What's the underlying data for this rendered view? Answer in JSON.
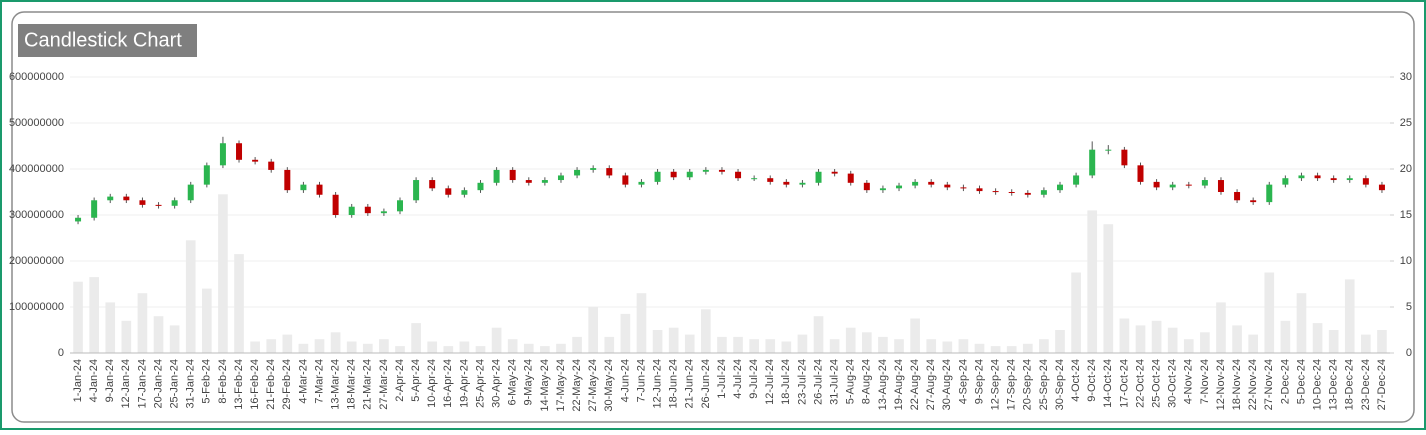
{
  "chart_data": {
    "type": "candlestick",
    "title": "Candlestick Chart",
    "categories": [
      "1-Jan-24",
      "4-Jan-24",
      "9-Jan-24",
      "12-Jan-24",
      "17-Jan-24",
      "20-Jan-24",
      "25-Jan-24",
      "31-Jan-24",
      "5-Feb-24",
      "8-Feb-24",
      "13-Feb-24",
      "16-Feb-24",
      "21-Feb-24",
      "29-Feb-24",
      "4-Mar-24",
      "7-Mar-24",
      "13-Mar-24",
      "18-Mar-24",
      "21-Mar-24",
      "27-Mar-24",
      "2-Apr-24",
      "5-Apr-24",
      "10-Apr-24",
      "16-Apr-24",
      "19-Apr-24",
      "25-Apr-24",
      "30-Apr-24",
      "6-May-24",
      "9-May-24",
      "14-May-24",
      "17-May-24",
      "22-May-24",
      "27-May-24",
      "30-May-24",
      "4-Jun-24",
      "7-Jun-24",
      "12-Jun-24",
      "18-Jun-24",
      "21-Jun-24",
      "26-Jun-24",
      "1-Jul-24",
      "4-Jul-24",
      "9-Jul-24",
      "12-Jul-24",
      "18-Jul-24",
      "23-Jul-24",
      "26-Jul-24",
      "31-Jul-24",
      "5-Aug-24",
      "8-Aug-24",
      "13-Aug-24",
      "19-Aug-24",
      "22-Aug-24",
      "27-Aug-24",
      "30-Aug-24",
      "4-Sep-24",
      "9-Sep-24",
      "12-Sep-24",
      "17-Sep-24",
      "20-Sep-24",
      "25-Sep-24",
      "30-Sep-24",
      "4-Oct-24",
      "9-Oct-24",
      "14-Oct-24",
      "17-Oct-24",
      "22-Oct-24",
      "25-Oct-24",
      "30-Oct-24",
      "4-Nov-24",
      "7-Nov-24",
      "12-Nov-24",
      "18-Nov-24",
      "22-Nov-24",
      "27-Nov-24",
      "2-Dec-24",
      "5-Dec-24",
      "10-Dec-24",
      "13-Dec-24",
      "18-Dec-24",
      "23-Dec-24",
      "27-Dec-24"
    ],
    "open": [
      14.3,
      14.7,
      16.6,
      17.0,
      16.6,
      16.1,
      16.0,
      16.6,
      18.3,
      20.4,
      22.8,
      21.0,
      20.8,
      19.9,
      17.7,
      18.3,
      17.2,
      15.0,
      15.9,
      15.2,
      15.4,
      16.6,
      18.8,
      17.9,
      17.2,
      17.7,
      18.5,
      19.9,
      18.8,
      18.5,
      18.8,
      19.3,
      19.9,
      20.1,
      19.3,
      18.3,
      18.6,
      19.7,
      19.1,
      19.7,
      19.9,
      19.7,
      19.0,
      19.0,
      18.6,
      18.3,
      18.5,
      19.7,
      19.5,
      18.5,
      17.7,
      17.9,
      18.2,
      18.6,
      18.3,
      18.0,
      17.9,
      17.6,
      17.5,
      17.4,
      17.2,
      17.7,
      18.3,
      19.3,
      22.1,
      22.1,
      20.4,
      18.6,
      18.0,
      18.3,
      18.2,
      18.8,
      17.5,
      16.6,
      16.4,
      18.3,
      19.0,
      19.3,
      19.0,
      18.8,
      19.0,
      18.3
    ],
    "high": [
      15.0,
      16.9,
      17.3,
      17.3,
      16.9,
      16.4,
      16.9,
      18.6,
      20.7,
      23.5,
      23.1,
      21.3,
      21.1,
      20.2,
      18.6,
      18.6,
      17.5,
      16.2,
      16.2,
      15.7,
      16.9,
      19.1,
      19.1,
      18.2,
      18.0,
      18.8,
      20.2,
      20.2,
      19.1,
      19.1,
      19.6,
      20.2,
      20.4,
      20.4,
      19.6,
      18.9,
      20.0,
      20.0,
      20.0,
      20.2,
      20.2,
      20.0,
      19.3,
      19.3,
      18.9,
      18.8,
      20.0,
      20.0,
      19.8,
      18.8,
      18.2,
      18.5,
      18.9,
      18.9,
      18.6,
      18.3,
      18.2,
      17.9,
      17.8,
      17.7,
      18.0,
      18.6,
      19.6,
      23.0,
      22.6,
      22.4,
      20.7,
      18.9,
      18.6,
      18.6,
      19.1,
      19.1,
      17.8,
      16.9,
      18.6,
      19.3,
      19.6,
      19.6,
      19.3,
      19.3,
      19.3,
      18.6
    ],
    "low": [
      14.0,
      14.4,
      16.3,
      16.3,
      15.8,
      15.7,
      15.7,
      16.3,
      18.0,
      20.1,
      20.7,
      20.5,
      19.6,
      17.4,
      17.4,
      16.9,
      14.7,
      14.7,
      14.9,
      14.9,
      15.1,
      16.3,
      17.6,
      16.9,
      16.9,
      17.4,
      18.2,
      18.5,
      18.2,
      18.2,
      18.5,
      19.0,
      19.6,
      19.0,
      18.0,
      18.0,
      18.3,
      18.8,
      18.8,
      19.4,
      19.4,
      18.7,
      18.7,
      18.3,
      18.0,
      18.0,
      18.2,
      19.2,
      18.2,
      17.4,
      17.4,
      17.6,
      17.9,
      18.0,
      17.7,
      17.6,
      17.3,
      17.2,
      17.1,
      16.9,
      16.9,
      17.4,
      18.0,
      19.0,
      21.6,
      20.1,
      18.3,
      17.7,
      17.7,
      17.9,
      17.9,
      17.2,
      16.3,
      16.1,
      16.1,
      18.0,
      18.7,
      18.7,
      18.5,
      18.5,
      18.0,
      17.4
    ],
    "close": [
      14.7,
      16.6,
      17.0,
      16.6,
      16.1,
      16.0,
      16.6,
      18.3,
      20.4,
      22.8,
      21.0,
      20.8,
      19.9,
      17.7,
      18.3,
      17.2,
      15.0,
      15.9,
      15.2,
      15.4,
      16.6,
      18.8,
      17.9,
      17.2,
      17.7,
      18.5,
      19.9,
      18.8,
      18.5,
      18.8,
      19.3,
      19.9,
      20.1,
      19.3,
      18.3,
      18.6,
      19.7,
      19.1,
      19.7,
      19.9,
      19.7,
      19.0,
      19.0,
      18.6,
      18.3,
      18.5,
      19.7,
      19.5,
      18.5,
      17.7,
      17.9,
      18.2,
      18.6,
      18.3,
      18.0,
      17.9,
      17.6,
      17.5,
      17.4,
      17.2,
      17.7,
      18.3,
      19.3,
      22.1,
      22.1,
      20.4,
      18.6,
      18.0,
      18.3,
      18.2,
      18.8,
      17.5,
      16.6,
      16.4,
      18.3,
      19.0,
      19.3,
      19.0,
      18.8,
      19.0,
      18.3,
      17.7
    ],
    "volume": [
      155000000,
      165000000,
      110000000,
      70000000,
      130000000,
      80000000,
      60000000,
      245000000,
      140000000,
      345000000,
      215000000,
      25000000,
      30000000,
      40000000,
      20000000,
      30000000,
      45000000,
      25000000,
      20000000,
      30000000,
      15000000,
      65000000,
      25000000,
      15000000,
      25000000,
      15000000,
      55000000,
      30000000,
      20000000,
      15000000,
      20000000,
      35000000,
      100000000,
      35000000,
      85000000,
      130000000,
      50000000,
      55000000,
      40000000,
      95000000,
      35000000,
      35000000,
      30000000,
      30000000,
      25000000,
      40000000,
      80000000,
      30000000,
      55000000,
      45000000,
      35000000,
      30000000,
      75000000,
      30000000,
      25000000,
      30000000,
      20000000,
      15000000,
      15000000,
      20000000,
      30000000,
      50000000,
      175000000,
      310000000,
      280000000,
      75000000,
      60000000,
      70000000,
      55000000,
      30000000,
      45000000,
      110000000,
      60000000,
      40000000,
      175000000,
      70000000,
      130000000,
      65000000,
      50000000,
      160000000,
      40000000,
      50000000
    ],
    "up_color": "#2bb54f",
    "down_color": "#c00000",
    "volume_color": "#ebebeb",
    "ylim": [
      0,
      600000000
    ],
    "yticks": [
      0,
      100000000,
      200000000,
      300000000,
      400000000,
      500000000,
      600000000
    ],
    "y2lim": [
      0,
      30
    ],
    "y2ticks": [
      0,
      5,
      10,
      15,
      20,
      25,
      30
    ],
    "grid": true
  }
}
